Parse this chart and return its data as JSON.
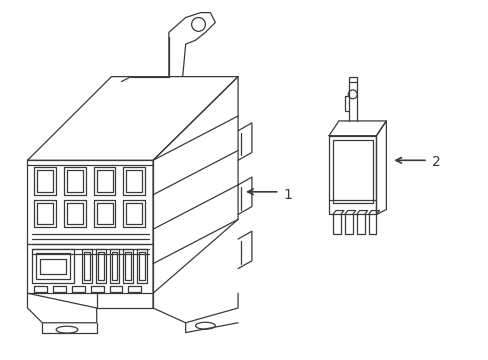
{
  "background_color": "#ffffff",
  "line_color": "#3a3a3a",
  "line_width": 0.9,
  "fig_width": 4.89,
  "fig_height": 3.6,
  "dpi": 100,
  "label1": "1",
  "label2": "2",
  "font_size": 10
}
